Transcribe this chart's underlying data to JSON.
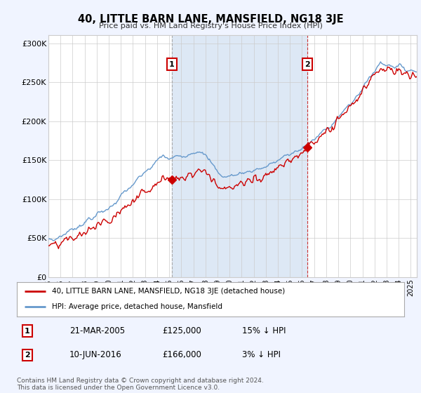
{
  "title": "40, LITTLE BARN LANE, MANSFIELD, NG18 3JE",
  "subtitle": "Price paid vs. HM Land Registry's House Price Index (HPI)",
  "legend_line1": "40, LITTLE BARN LANE, MANSFIELD, NG18 3JE (detached house)",
  "legend_line2": "HPI: Average price, detached house, Mansfield",
  "transaction1_label": "1",
  "transaction1_date": "21-MAR-2005",
  "transaction1_price": "£125,000",
  "transaction1_hpi": "15% ↓ HPI",
  "transaction1_year": 2005.22,
  "transaction1_value": 125000,
  "transaction2_label": "2",
  "transaction2_date": "10-JUN-2016",
  "transaction2_price": "£166,000",
  "transaction2_hpi": "3% ↓ HPI",
  "transaction2_year": 2016.44,
  "transaction2_value": 166000,
  "footer": "Contains HM Land Registry data © Crown copyright and database right 2024.\nThis data is licensed under the Open Government Licence v3.0.",
  "property_color": "#cc0000",
  "hpi_color": "#6699cc",
  "shade_color": "#dde8f5",
  "background_color": "#f0f4ff",
  "plot_bg_color": "#ffffff",
  "vline_color": "#aaaaaa",
  "ylim": [
    0,
    310000
  ],
  "yticks": [
    0,
    50000,
    100000,
    150000,
    200000,
    250000,
    300000
  ],
  "ytick_labels": [
    "£0",
    "£50K",
    "£100K",
    "£150K",
    "£200K",
    "£250K",
    "£300K"
  ],
  "xmin": 1995,
  "xmax": 2025.5
}
